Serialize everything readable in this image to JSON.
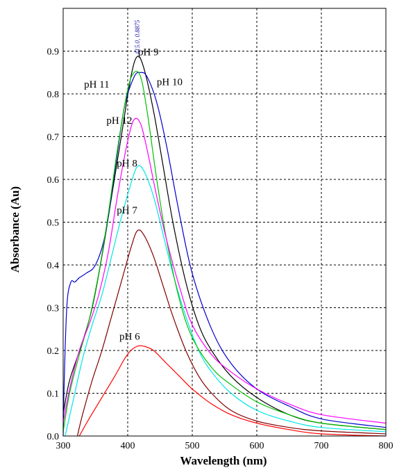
{
  "chart_data": {
    "type": "line",
    "title": "",
    "xlabel": "Wavelength (nm)",
    "ylabel": "Absorbance (Au)",
    "xlim": [
      300,
      800
    ],
    "ylim": [
      0,
      1.0
    ],
    "xticks": [
      300,
      400,
      500,
      600,
      700,
      800
    ],
    "xtick_labels": [
      "300",
      "400",
      "500",
      "600",
      "700",
      "800"
    ],
    "yticks": [
      0.0,
      0.1,
      0.2,
      0.3,
      0.4,
      0.5,
      0.6,
      0.7,
      0.8,
      0.9
    ],
    "ytick_labels": [
      "0.0",
      "0.1",
      "0.2",
      "0.3",
      "0.4",
      "0.5",
      "0.6",
      "0.7",
      "0.8",
      "0.9"
    ],
    "grid": true,
    "legend": "none",
    "annotations": [
      {
        "text": "415.0, 0.8875",
        "x": 415,
        "y": 0.8875
      }
    ],
    "series": [
      {
        "name": "pH 6",
        "color": "#ff0000",
        "x": [
          325,
          340,
          360,
          380,
          395,
          405,
          415,
          425,
          440,
          460,
          480,
          500,
          530,
          560,
          600,
          650,
          700,
          800
        ],
        "y": [
          0.0,
          0.04,
          0.09,
          0.14,
          0.18,
          0.2,
          0.21,
          0.21,
          0.2,
          0.17,
          0.14,
          0.11,
          0.075,
          0.05,
          0.03,
          0.015,
          0.005,
          0.0
        ]
      },
      {
        "name": "pH 7",
        "color": "#800000",
        "x": [
          322,
          330,
          345,
          360,
          375,
          390,
          405,
          415,
          425,
          440,
          455,
          470,
          490,
          510,
          530,
          560,
          600,
          650,
          700,
          800
        ],
        "y": [
          0.0,
          0.05,
          0.13,
          0.2,
          0.28,
          0.36,
          0.44,
          0.48,
          0.47,
          0.42,
          0.35,
          0.28,
          0.2,
          0.14,
          0.1,
          0.06,
          0.035,
          0.02,
          0.012,
          0.005
        ]
      },
      {
        "name": "pH 8",
        "color": "#00e5e5",
        "x": [
          303,
          315,
          330,
          345,
          360,
          375,
          390,
          405,
          415,
          425,
          440,
          455,
          470,
          490,
          510,
          530,
          560,
          600,
          650,
          700,
          800
        ],
        "y": [
          0.0,
          0.08,
          0.18,
          0.26,
          0.33,
          0.42,
          0.51,
          0.59,
          0.63,
          0.62,
          0.56,
          0.47,
          0.38,
          0.28,
          0.2,
          0.15,
          0.1,
          0.06,
          0.035,
          0.02,
          0.01
        ]
      },
      {
        "name": "pH 9",
        "color": "#000000",
        "x": [
          300,
          310,
          330,
          345,
          360,
          375,
          390,
          405,
          415,
          425,
          440,
          455,
          470,
          490,
          510,
          530,
          560,
          600,
          650,
          700,
          800
        ],
        "y": [
          0.05,
          0.13,
          0.22,
          0.3,
          0.42,
          0.56,
          0.7,
          0.84,
          0.8875,
          0.86,
          0.76,
          0.63,
          0.5,
          0.36,
          0.26,
          0.2,
          0.14,
          0.09,
          0.05,
          0.03,
          0.015
        ]
      },
      {
        "name": "pH 10",
        "color": "#0000cc",
        "x": [
          300,
          302,
          306,
          312,
          318,
          325,
          335,
          350,
          365,
          380,
          395,
          410,
          420,
          430,
          445,
          460,
          480,
          500,
          530,
          560,
          600,
          650,
          700,
          800
        ],
        "y": [
          0.0,
          0.15,
          0.31,
          0.36,
          0.36,
          0.37,
          0.38,
          0.4,
          0.47,
          0.62,
          0.77,
          0.84,
          0.85,
          0.84,
          0.78,
          0.68,
          0.52,
          0.38,
          0.25,
          0.17,
          0.11,
          0.07,
          0.04,
          0.02
        ]
      },
      {
        "name": "pH 11",
        "color": "#00c000",
        "x": [
          300,
          310,
          325,
          340,
          355,
          370,
          385,
          400,
          410,
          420,
          430,
          445,
          460,
          480,
          500,
          530,
          560,
          600,
          650,
          700,
          800
        ],
        "y": [
          0.01,
          0.1,
          0.19,
          0.27,
          0.38,
          0.52,
          0.68,
          0.81,
          0.85,
          0.84,
          0.76,
          0.6,
          0.46,
          0.32,
          0.23,
          0.16,
          0.12,
          0.08,
          0.05,
          0.03,
          0.015
        ]
      },
      {
        "name": "pH 12",
        "color": "#ff00ff",
        "x": [
          300,
          310,
          325,
          340,
          355,
          370,
          385,
          400,
          410,
          420,
          430,
          445,
          460,
          480,
          500,
          530,
          560,
          600,
          650,
          700,
          800
        ],
        "y": [
          0.03,
          0.11,
          0.2,
          0.26,
          0.33,
          0.43,
          0.57,
          0.69,
          0.74,
          0.73,
          0.67,
          0.56,
          0.46,
          0.35,
          0.26,
          0.19,
          0.15,
          0.11,
          0.075,
          0.05,
          0.03
        ]
      }
    ],
    "series_labels": [
      {
        "text": "pH 9",
        "x": 432,
        "y": 0.89
      },
      {
        "text": "pH 11",
        "x": 352,
        "y": 0.815
      },
      {
        "text": "pH 10",
        "x": 465,
        "y": 0.82
      },
      {
        "text": "pH 12",
        "x": 387,
        "y": 0.73
      },
      {
        "text": "pH 8",
        "x": 399,
        "y": 0.63
      },
      {
        "text": "pH 7",
        "x": 399,
        "y": 0.52
      },
      {
        "text": "pH 6",
        "x": 403,
        "y": 0.225
      }
    ]
  }
}
